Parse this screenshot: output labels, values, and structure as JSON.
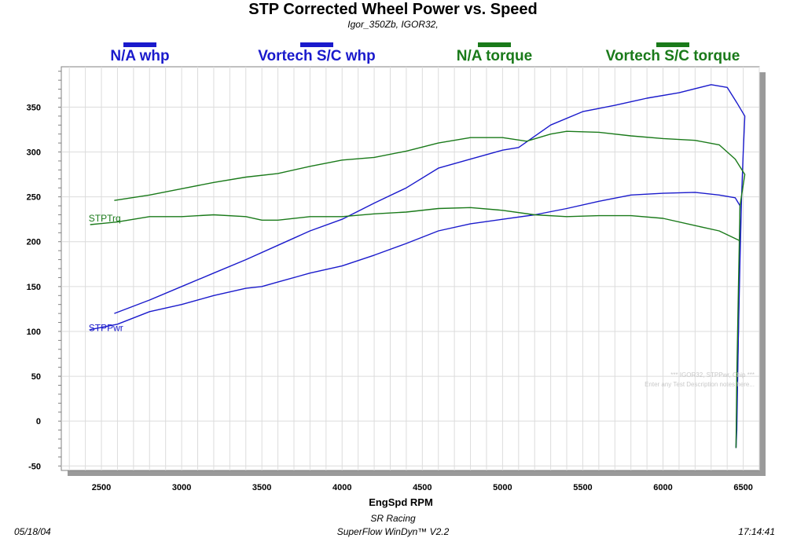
{
  "header": {
    "title": "STP Corrected Wheel Power vs. Speed",
    "subtitle": "Igor_350Zb, IGOR32,"
  },
  "legend": [
    {
      "label": "N/A whp",
      "color": "#1a1acc"
    },
    {
      "label": "Vortech S/C whp",
      "color": "#1a1acc"
    },
    {
      "label": "N/A torque",
      "color": "#1a7a1a"
    },
    {
      "label": "Vortech S/C torque",
      "color": "#1a7a1a"
    }
  ],
  "footer": {
    "date": "05/18/04",
    "shop": "SR Racing",
    "software": "SuperFlow WinDyn™ V2.2",
    "time": "17:14:41"
  },
  "chart_data": {
    "type": "line",
    "xlabel": "EngSpd  RPM",
    "ylabel": "",
    "xlim": [
      2250,
      6600
    ],
    "ylim": [
      -55,
      395
    ],
    "x_ticks": [
      2500,
      3000,
      3500,
      4000,
      4500,
      5000,
      5500,
      6000,
      6500
    ],
    "y_ticks": [
      -50,
      0,
      50,
      100,
      150,
      200,
      250,
      300,
      350
    ],
    "inline_labels": [
      {
        "text": "STPTrq",
        "x": 2430,
        "y": 226,
        "color": "#1a7a1a"
      },
      {
        "text": "STPPwr",
        "x": 2430,
        "y": 104,
        "color": "#1a1acc"
      }
    ],
    "watermark": [
      "*** IGOR32, STPPwr, Chip  ***",
      "Enter any Test Description notes here..."
    ],
    "series": [
      {
        "name": "N/A whp",
        "color": "#1a1acc",
        "x": [
          2430,
          2600,
          2800,
          3000,
          3200,
          3400,
          3500,
          3600,
          3800,
          4000,
          4200,
          4400,
          4600,
          4800,
          5000,
          5200,
          5400,
          5600,
          5800,
          6000,
          6200,
          6350,
          6450,
          6480,
          6470,
          6460,
          6455
        ],
        "y": [
          102,
          108,
          122,
          130,
          140,
          148,
          150,
          155,
          165,
          173,
          185,
          198,
          212,
          220,
          225,
          230,
          237,
          245,
          252,
          254,
          255,
          252,
          249,
          240,
          100,
          -10,
          -30
        ]
      },
      {
        "name": "Vortech S/C whp",
        "color": "#1a1acc",
        "x": [
          2580,
          2800,
          3000,
          3200,
          3400,
          3600,
          3800,
          4000,
          4200,
          4400,
          4600,
          4800,
          5000,
          5100,
          5300,
          5500,
          5700,
          5900,
          6100,
          6300,
          6400,
          6460,
          6510,
          6500,
          6490,
          6480,
          6470,
          6460,
          6455
        ],
        "y": [
          120,
          135,
          150,
          165,
          180,
          196,
          212,
          225,
          243,
          260,
          282,
          292,
          302,
          305,
          330,
          345,
          352,
          360,
          366,
          375,
          372,
          355,
          340,
          300,
          250,
          180,
          100,
          20,
          -30
        ]
      },
      {
        "name": "N/A torque",
        "color": "#1a7a1a",
        "x": [
          2430,
          2600,
          2800,
          3000,
          3200,
          3400,
          3500,
          3600,
          3800,
          4000,
          4200,
          4400,
          4600,
          4800,
          5000,
          5200,
          5400,
          5600,
          5800,
          6000,
          6200,
          6350,
          6480
        ],
        "y": [
          219,
          222,
          228,
          228,
          230,
          228,
          224,
          224,
          228,
          228,
          231,
          233,
          237,
          238,
          235,
          230,
          228,
          229,
          229,
          226,
          218,
          212,
          201
        ]
      },
      {
        "name": "Vortech S/C torque",
        "color": "#1a7a1a",
        "x": [
          2580,
          2800,
          3000,
          3200,
          3400,
          3600,
          3800,
          4000,
          4200,
          4400,
          4600,
          4800,
          5000,
          5150,
          5300,
          5400,
          5600,
          5800,
          6000,
          6200,
          6350,
          6450,
          6510,
          6480,
          6470,
          6460,
          6455
        ],
        "y": [
          246,
          252,
          259,
          266,
          272,
          276,
          284,
          291,
          294,
          301,
          310,
          316,
          316,
          312,
          320,
          323,
          322,
          318,
          315,
          313,
          308,
          292,
          275,
          240,
          150,
          50,
          -30
        ]
      }
    ]
  }
}
